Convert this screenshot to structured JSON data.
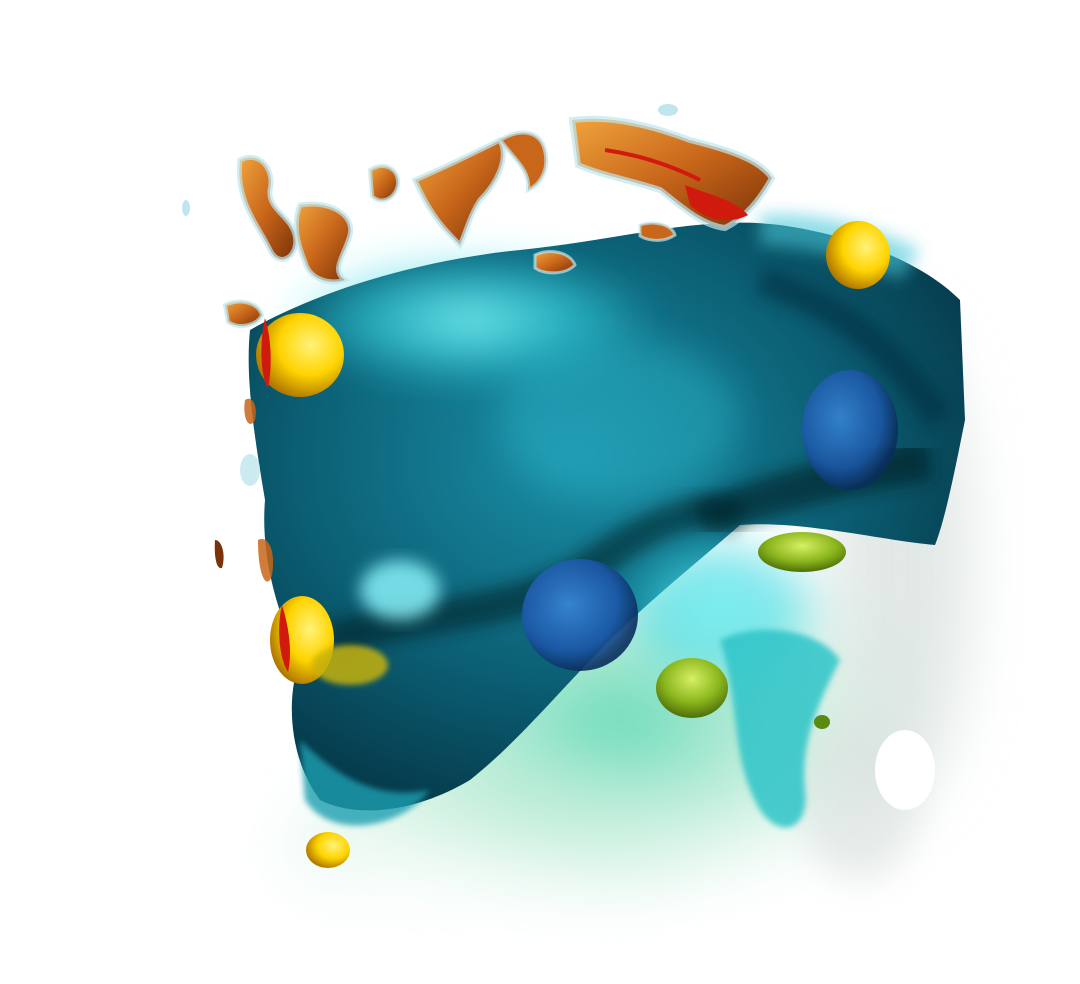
{
  "scene": {
    "background_color": "#ffffff",
    "colors": {
      "deep_navy": "#04303f",
      "teal_dark": "#0b5e73",
      "teal": "#1a8ea6",
      "cyan": "#34d8e6",
      "cyan_glow": "#7ff4f4",
      "sea_green": "#3fd1a7",
      "mint": "#a8e6c8",
      "deep_blue": "#1c57a8",
      "orange": "#c8661a",
      "amber": "#f0a33c",
      "dark_orange": "#7a3208",
      "red": "#d11a0e",
      "yellow": "#ffd400",
      "yellow_light": "#fff27a",
      "olive": "#8ab51c",
      "pale_blue_halo": "#bfe6ee"
    }
  }
}
